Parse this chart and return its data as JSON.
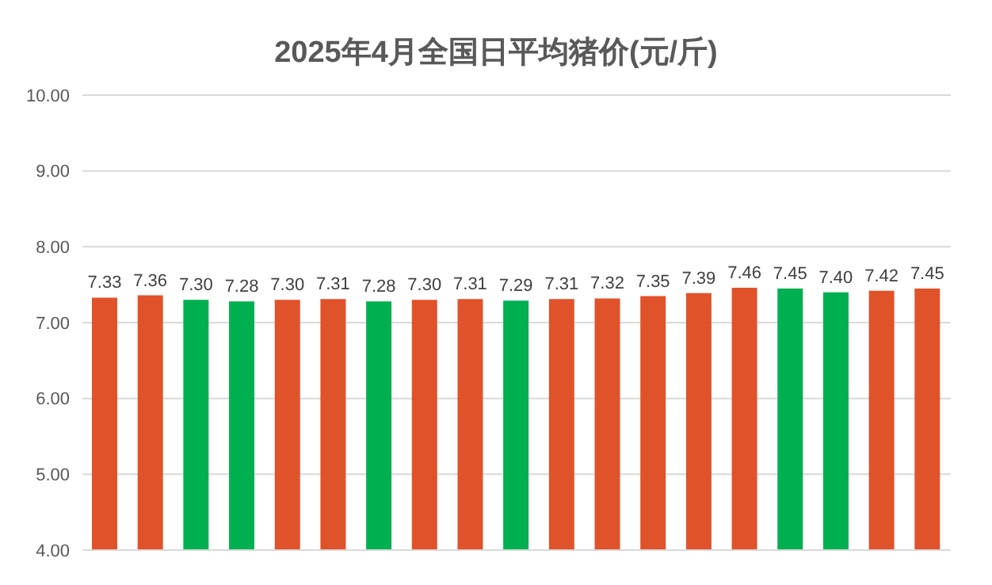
{
  "chart_data": {
    "type": "bar",
    "title": "2025年4月全国日平均猪价(元/斤)",
    "categories": [
      null,
      null,
      null,
      null,
      null,
      null,
      null,
      null,
      null,
      null,
      null,
      null,
      null,
      null,
      null,
      null,
      null,
      null,
      null
    ],
    "values": [
      7.33,
      7.36,
      7.3,
      7.28,
      7.3,
      7.31,
      7.28,
      7.3,
      7.31,
      7.29,
      7.31,
      7.32,
      7.35,
      7.39,
      7.46,
      7.45,
      7.4,
      7.42,
      7.45
    ],
    "value_labels": [
      "7.33",
      "7.36",
      "7.30",
      "7.28",
      "7.30",
      "7.31",
      "7.28",
      "7.30",
      "7.31",
      "7.29",
      "7.31",
      "7.32",
      "7.35",
      "7.39",
      "7.46",
      "7.45",
      "7.40",
      "7.42",
      "7.45"
    ],
    "colors": [
      "#e0532a",
      "#e0532a",
      "#00b050",
      "#00b050",
      "#e0532a",
      "#e0532a",
      "#00b050",
      "#e0532a",
      "#e0532a",
      "#00b050",
      "#e0532a",
      "#e0532a",
      "#e0532a",
      "#e0532a",
      "#e0532a",
      "#00b050",
      "#00b050",
      "#e0532a",
      "#e0532a"
    ],
    "ylim": [
      4,
      10
    ],
    "yticks": [
      {
        "value": 4,
        "label": "4.00"
      },
      {
        "value": 5,
        "label": "5.00"
      },
      {
        "value": 6,
        "label": "6.00"
      },
      {
        "value": 7,
        "label": "7.00"
      },
      {
        "value": 8,
        "label": "8.00"
      },
      {
        "value": 9,
        "label": "9.00"
      },
      {
        "value": 10,
        "label": "10.00"
      }
    ],
    "grid": "y",
    "tick_labels": "y"
  }
}
